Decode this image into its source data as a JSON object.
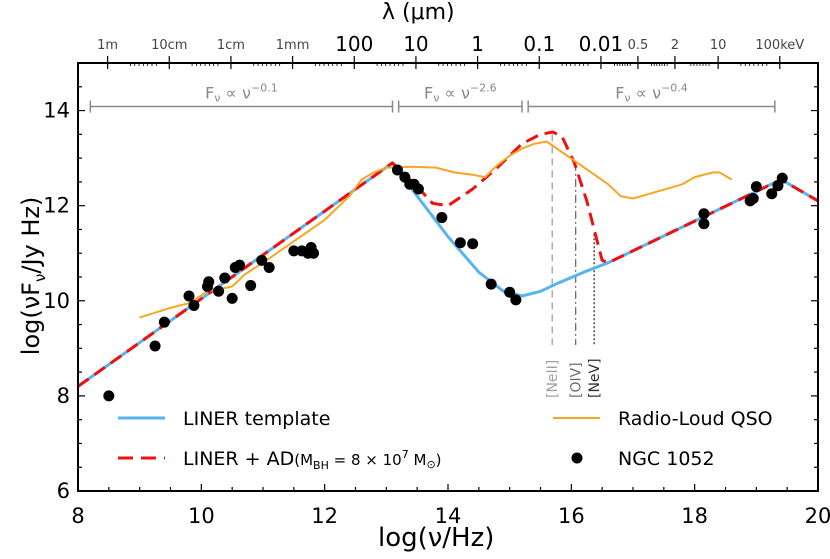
{
  "chart_data": {
    "type": "line",
    "title": "",
    "xlabel": "log(ν/Hz)",
    "ylabel": "log(νF_ν/Jy Hz)",
    "top_axis_label": "λ (μm)",
    "xlim": [
      8,
      20
    ],
    "ylim": [
      6,
      15
    ],
    "grid": false,
    "x_ticks": [
      8,
      10,
      12,
      14,
      16,
      18,
      20
    ],
    "y_ticks": [
      6,
      8,
      10,
      12,
      14
    ],
    "top_ticks": [
      {
        "label": "1m",
        "x": 8.48,
        "size": "small"
      },
      {
        "label": "10cm",
        "x": 9.48,
        "size": "small"
      },
      {
        "label": "1cm",
        "x": 10.48,
        "size": "small"
      },
      {
        "label": "1mm",
        "x": 11.48,
        "size": "small"
      },
      {
        "label": "100",
        "x": 12.48,
        "size": "large"
      },
      {
        "label": "10",
        "x": 13.48,
        "size": "large"
      },
      {
        "label": "1",
        "x": 14.48,
        "size": "large"
      },
      {
        "label": "0.1",
        "x": 15.48,
        "size": "large"
      },
      {
        "label": "0.01",
        "x": 16.48,
        "size": "large"
      },
      {
        "label": "0.5",
        "x": 17.08,
        "size": "small"
      },
      {
        "label": "2",
        "x": 17.68,
        "size": "small"
      },
      {
        "label": "10",
        "x": 18.38,
        "size": "small"
      },
      {
        "label": "100keV",
        "x": 19.38,
        "size": "small"
      }
    ],
    "annotations": {
      "power_laws": [
        {
          "label_base": "F",
          "label_sub": "ν",
          "label_mid": " ∝ ν",
          "exponent": "−0.1",
          "x_start": 8.2,
          "x_end": 13.1,
          "y": 14.0
        },
        {
          "label_base": "F",
          "label_sub": "ν",
          "label_mid": " ∝ ν",
          "exponent": "−2.6",
          "x_start": 13.2,
          "x_end": 15.2,
          "y": 14.0
        },
        {
          "label_base": "F",
          "label_sub": "ν",
          "label_mid": " ∝ ν",
          "exponent": "−0.4",
          "x_start": 15.3,
          "x_end": 19.3,
          "y": 14.0
        }
      ],
      "lines": [
        {
          "label": "[NeII]",
          "x": 15.69,
          "y_top": 13.5,
          "style": "dashed",
          "color": "#a0a0a0"
        },
        {
          "label": "[OIV]",
          "x": 16.07,
          "y_top": 12.9,
          "style": "dashdot",
          "color": "#707070"
        },
        {
          "label": "[NeV]",
          "x": 16.37,
          "y_top": 11.4,
          "style": "dotted",
          "color": "#303030"
        }
      ]
    },
    "series": [
      {
        "name": "LINER template",
        "color": "#56b4f0",
        "style": "solid",
        "x": [
          8.0,
          13.1,
          13.5,
          14.0,
          14.5,
          14.9,
          15.2,
          15.5,
          15.8,
          16.2,
          16.6,
          17.0,
          19.4,
          20.0
        ],
        "y": [
          8.2,
          12.9,
          12.2,
          11.35,
          10.6,
          10.2,
          10.1,
          10.2,
          10.38,
          10.6,
          10.8,
          11.05,
          12.55,
          12.1
        ]
      },
      {
        "name": "LINER + AD(M_BH = 8×10^7 M_⊙)",
        "color": "#ee1111",
        "style": "dashed",
        "x": [
          8.0,
          13.1,
          13.5,
          13.75,
          14.0,
          14.4,
          14.8,
          15.2,
          15.5,
          15.7,
          15.85,
          16.05,
          16.25,
          16.4,
          16.5,
          16.6,
          17.0,
          19.4,
          20.0
        ],
        "y": [
          8.2,
          12.9,
          12.4,
          12.05,
          12.0,
          12.35,
          12.8,
          13.3,
          13.5,
          13.55,
          13.45,
          12.9,
          12.1,
          11.35,
          10.85,
          10.8,
          11.05,
          12.55,
          12.1
        ]
      },
      {
        "name": "Radio-Loud QSO",
        "color": "#f5a623",
        "style": "solid",
        "x": [
          9.0,
          9.5,
          9.8,
          10.1,
          10.5,
          10.7,
          11.0,
          11.5,
          12.0,
          12.4,
          12.6,
          12.8,
          13.0,
          13.4,
          13.8,
          14.1,
          14.4,
          14.6,
          14.8,
          15.0,
          15.2,
          15.4,
          15.6,
          16.6,
          16.8,
          17.0,
          17.4,
          17.8,
          18.0,
          18.3,
          18.4,
          18.6
        ],
        "y": [
          9.65,
          9.85,
          9.95,
          10.2,
          10.3,
          10.55,
          10.8,
          11.25,
          11.7,
          12.2,
          12.55,
          12.7,
          12.8,
          12.82,
          12.8,
          12.7,
          12.65,
          12.6,
          12.85,
          13.05,
          13.2,
          13.3,
          13.35,
          12.45,
          12.2,
          12.15,
          12.3,
          12.45,
          12.6,
          12.7,
          12.7,
          12.55
        ]
      },
      {
        "name": "NGC 1052",
        "color": "#000000",
        "style": "markers",
        "x": [
          8.5,
          9.25,
          9.4,
          9.8,
          9.88,
          10.1,
          10.12,
          10.28,
          10.38,
          10.5,
          10.55,
          10.62,
          10.8,
          10.98,
          11.1,
          11.5,
          11.63,
          11.73,
          11.78,
          11.82,
          13.18,
          13.3,
          13.38,
          13.45,
          13.52,
          13.9,
          14.2,
          14.4,
          14.7,
          15.0,
          15.1,
          18.15,
          18.15,
          18.9,
          18.95,
          19.0,
          19.25,
          19.35,
          19.42
        ],
        "y": [
          8.0,
          9.05,
          9.55,
          10.1,
          9.9,
          10.3,
          10.4,
          10.2,
          10.48,
          10.05,
          10.7,
          10.75,
          10.32,
          10.85,
          10.7,
          11.05,
          11.05,
          11.0,
          11.12,
          11.0,
          12.75,
          12.6,
          12.45,
          12.45,
          12.35,
          11.75,
          11.22,
          11.2,
          10.35,
          10.18,
          10.02,
          11.83,
          11.62,
          12.1,
          12.15,
          12.4,
          12.25,
          12.42,
          12.58
        ]
      }
    ],
    "legend": [
      {
        "label": "LINER template",
        "marker": "line",
        "color": "#56b4f0"
      },
      {
        "label_pre": "LINER + AD(M",
        "label_sub": "BH",
        "label_mid": " = 8 × 10",
        "label_sup": "7",
        "label_post": " M",
        "label_sun": "⊙",
        "label_end": ")",
        "marker": "dashed",
        "color": "#ee1111"
      },
      {
        "label": "Radio-Loud QSO",
        "marker": "line",
        "color": "#f5a623"
      },
      {
        "label": "NGC 1052",
        "marker": "dot",
        "color": "#000000"
      }
    ],
    "legend_position": "lower"
  }
}
